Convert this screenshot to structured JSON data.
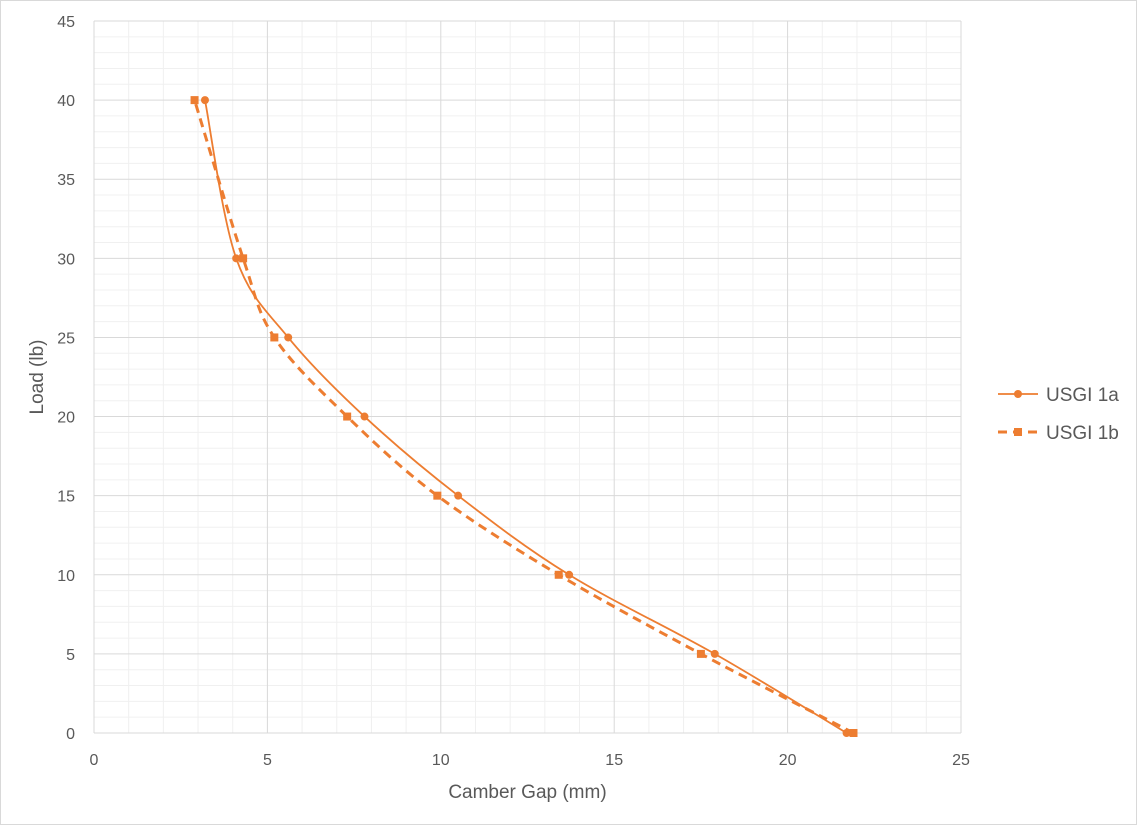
{
  "chart_data": {
    "type": "scatter",
    "title": "",
    "xlabel": "Camber Gap (mm)",
    "ylabel": "Load (lb)",
    "xlim": [
      0,
      25
    ],
    "ylim": [
      0,
      45
    ],
    "x_ticks": [
      0,
      5,
      10,
      15,
      20,
      25
    ],
    "y_ticks": [
      0,
      5,
      10,
      15,
      20,
      25,
      30,
      35,
      40,
      45
    ],
    "x_minor_step": 1,
    "y_minor_step": 1,
    "grid": true,
    "legend_position": "right",
    "series": [
      {
        "name": "USGI 1a",
        "line_style": "solid",
        "marker": "circle",
        "color": "#ED7D31",
        "x": [
          21.7,
          17.9,
          13.7,
          10.5,
          7.8,
          5.6,
          4.1,
          3.2
        ],
        "y": [
          0,
          5,
          10,
          15,
          20,
          25,
          30,
          40
        ]
      },
      {
        "name": "USGI 1b",
        "line_style": "dashed",
        "marker": "square",
        "color": "#ED7D31",
        "x": [
          21.9,
          17.5,
          13.4,
          9.9,
          7.3,
          5.2,
          4.3,
          2.9
        ],
        "y": [
          0,
          5,
          10,
          15,
          20,
          25,
          30,
          40
        ]
      }
    ]
  }
}
